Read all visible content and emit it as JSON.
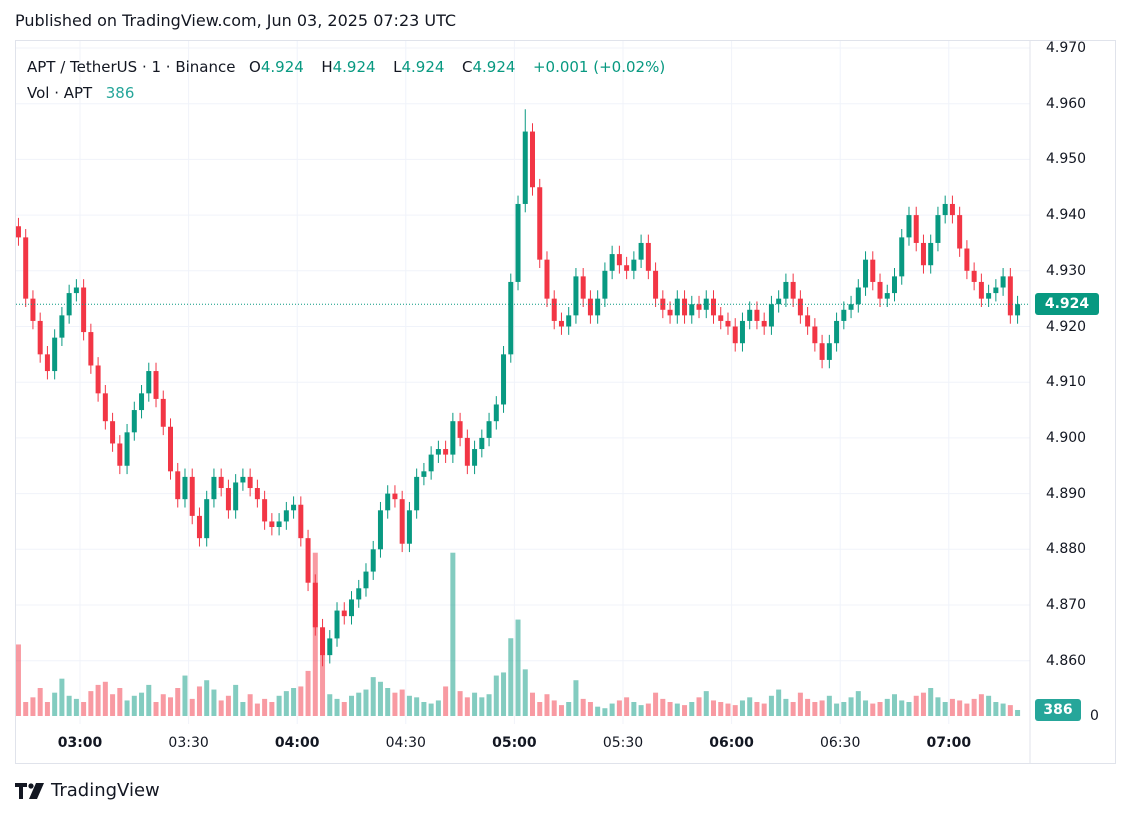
{
  "published": "Published on TradingView.com, Jun 03, 2025 07:23 UTC",
  "legend": {
    "symbol": "APT / TetherUS · 1 · Binance",
    "o_label": "O",
    "o": "4.924",
    "h_label": "H",
    "h": "4.924",
    "l_label": "L",
    "l": "4.924",
    "c_label": "C",
    "c": "4.924",
    "change": "+0.001 (+0.02%)",
    "vol_label": "Vol · APT",
    "vol": "386"
  },
  "price_tag": "4.924",
  "volume_tag": "386",
  "footer": {
    "brand": "TradingView"
  },
  "colors": {
    "up": "#089981",
    "down": "#f23645",
    "grid": "#f0f3fa",
    "tag": "#089981",
    "vol_tag": "#26a69a"
  },
  "chart_data": {
    "type": "candlestick",
    "title": "APT / TetherUS · 1 · Binance",
    "y_ticks": [
      "4.970",
      "4.960",
      "4.950",
      "4.940",
      "4.930",
      "4.920",
      "4.910",
      "4.900",
      "4.890",
      "4.880",
      "4.870",
      "4.860"
    ],
    "ylim": [
      4.857,
      4.971
    ],
    "x_ticks": [
      "03:00",
      "03:30",
      "04:00",
      "04:30",
      "05:00",
      "05:30",
      "06:00",
      "06:30",
      "07:00"
    ],
    "x_start_minute": -17,
    "step_minutes": 2,
    "current_price": 4.924,
    "volume_zero_label": "0",
    "closes": [
      4.936,
      4.925,
      4.921,
      4.915,
      4.912,
      4.918,
      4.922,
      4.926,
      4.927,
      4.919,
      4.913,
      4.908,
      4.903,
      4.899,
      4.895,
      4.901,
      4.905,
      4.908,
      4.912,
      4.907,
      4.902,
      4.894,
      4.889,
      4.893,
      4.886,
      4.882,
      4.889,
      4.893,
      4.891,
      4.887,
      4.892,
      4.893,
      4.891,
      4.889,
      4.885,
      4.884,
      4.885,
      4.887,
      4.888,
      4.882,
      4.874,
      4.866,
      4.861,
      4.864,
      4.869,
      4.868,
      4.871,
      4.873,
      4.876,
      4.88,
      4.887,
      4.89,
      4.889,
      4.881,
      4.887,
      4.893,
      4.894,
      4.897,
      4.898,
      4.897,
      4.903,
      4.9,
      4.895,
      4.898,
      4.9,
      4.903,
      4.906,
      4.915,
      4.928,
      4.942,
      4.955,
      4.945,
      4.932,
      4.925,
      4.921,
      4.92,
      4.922,
      4.929,
      4.925,
      4.922,
      4.925,
      4.93,
      4.933,
      4.931,
      4.93,
      4.932,
      4.935,
      4.93,
      4.925,
      4.923,
      4.922,
      4.925,
      4.922,
      4.924,
      4.923,
      4.925,
      4.922,
      4.921,
      4.92,
      4.917,
      4.921,
      4.923,
      4.921,
      4.92,
      4.924,
      4.925,
      4.928,
      4.925,
      4.922,
      4.92,
      4.917,
      4.914,
      4.917,
      4.921,
      4.923,
      4.924,
      4.927,
      4.932,
      4.928,
      4.925,
      4.926,
      4.929,
      4.936,
      4.94,
      4.935,
      4.931,
      4.935,
      4.94,
      4.942,
      4.94,
      4.934,
      4.93,
      4.928,
      4.925,
      4.926,
      4.927,
      4.929,
      4.922,
      4.924
    ],
    "volumes": [
      4600,
      900,
      1200,
      1800,
      900,
      1500,
      2400,
      1300,
      1100,
      900,
      1600,
      2000,
      2200,
      1400,
      1800,
      1000,
      1300,
      1500,
      2000,
      900,
      1400,
      1200,
      1800,
      2600,
      1100,
      1900,
      2300,
      1700,
      1000,
      1300,
      2000,
      900,
      1400,
      800,
      1100,
      900,
      1300,
      1600,
      1800,
      1900,
      2900,
      10500,
      4000,
      1400,
      1100,
      900,
      1300,
      1500,
      1700,
      2500,
      2200,
      1800,
      1500,
      1700,
      1300,
      1200,
      900,
      800,
      1000,
      1900,
      10500,
      1600,
      1200,
      1500,
      1200,
      1400,
      2600,
      2800,
      5000,
      6200,
      3000,
      1500,
      900,
      1400,
      1000,
      700,
      900,
      2300,
      1100,
      900,
      600,
      500,
      800,
      1000,
      1200,
      900,
      700,
      800,
      1500,
      1100,
      900,
      800,
      700,
      900,
      1200,
      1600,
      1000,
      900,
      800,
      700,
      1000,
      1200,
      900,
      800,
      1300,
      1700,
      1100,
      900,
      1500,
      1100,
      900,
      1000,
      1300,
      800,
      900,
      1200,
      1600,
      1000,
      800,
      900,
      1100,
      1400,
      1000,
      900,
      1300,
      1500,
      1800,
      1200,
      900,
      1100,
      1000,
      800,
      1100,
      1400,
      1300,
      900,
      800,
      700,
      386
    ]
  }
}
